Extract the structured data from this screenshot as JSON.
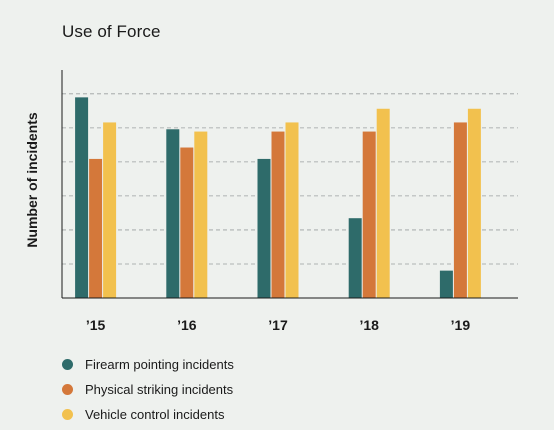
{
  "chart_data": {
    "type": "bar",
    "title": "Use of Force",
    "ylabel": "Number of incidents",
    "xlabel": "",
    "categories": [
      "’15",
      "’16",
      "’17",
      "’18",
      "’19"
    ],
    "ylim": [
      0,
      100
    ],
    "grid": true,
    "legend_placement": "bottom-left",
    "series": [
      {
        "name": "Firearm pointing incidents",
        "color": "#2e6b6a",
        "values": [
          88,
          74,
          61,
          35,
          12
        ]
      },
      {
        "name": "Physical striking incidents",
        "color": "#d4783a",
        "values": [
          61,
          66,
          73,
          73,
          77
        ]
      },
      {
        "name": "Vehicle control incidents",
        "color": "#f2c14e",
        "values": [
          77,
          73,
          77,
          83,
          83
        ]
      }
    ]
  }
}
